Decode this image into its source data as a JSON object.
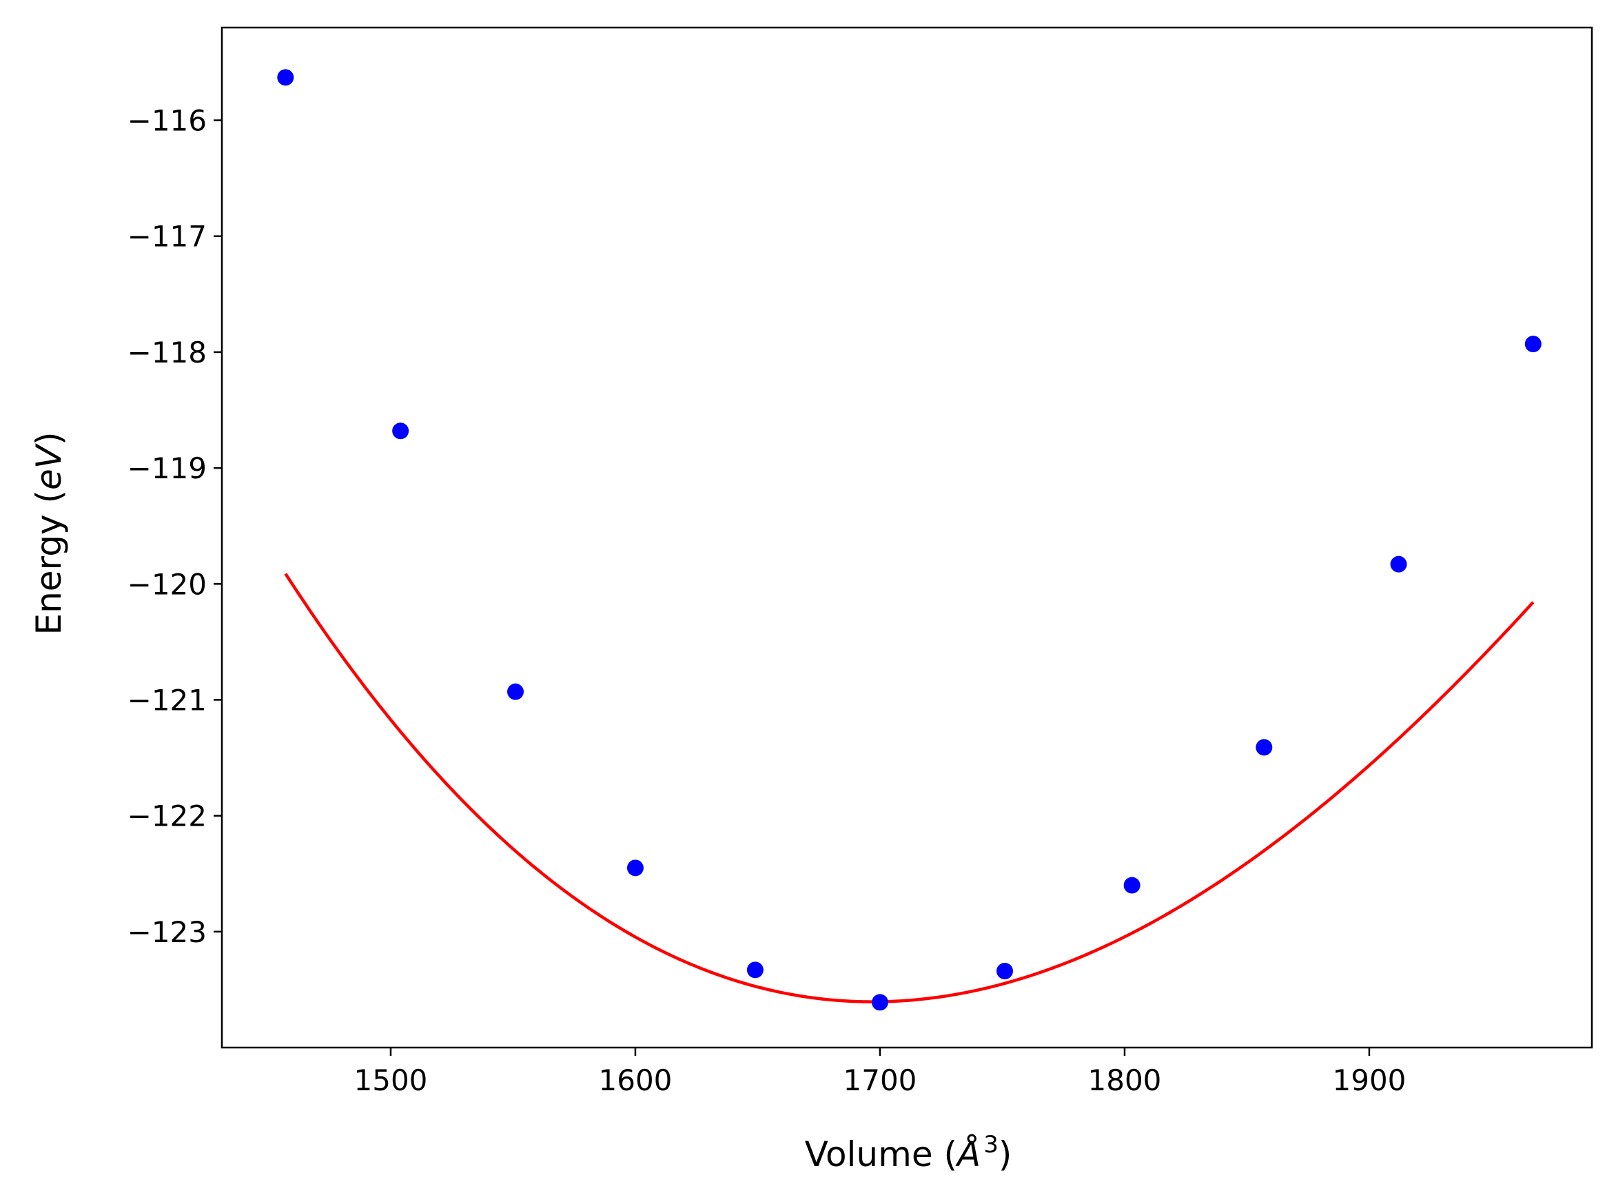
{
  "chart_data": {
    "type": "scatter",
    "title": "",
    "xlabel": {
      "prefix": "Volume (",
      "italic": "Å",
      "sup": "3",
      "suffix": ")"
    },
    "ylabel": {
      "prefix": "Energy (",
      "italic": "eV",
      "suffix": ")"
    },
    "xlim": [
      1431,
      1991
    ],
    "ylim": [
      -124.0,
      -115.2
    ],
    "xticks": [
      1500,
      1600,
      1700,
      1800,
      1900
    ],
    "xtick_labels": [
      "1500",
      "1600",
      "1700",
      "1800",
      "1900"
    ],
    "yticks": [
      -123,
      -122,
      -121,
      -120,
      -119,
      -118,
      -117,
      -116
    ],
    "ytick_labels": [
      "−123",
      "−122",
      "−121",
      "−120",
      "−119",
      "−118",
      "−117",
      "−116"
    ],
    "grid": false,
    "series": [
      {
        "kind": "points",
        "color": "#0000ff",
        "x": [
          1457,
          1504,
          1551,
          1600,
          1649,
          1700,
          1751,
          1803,
          1857,
          1912,
          1967
        ],
        "y": [
          -115.63,
          -118.68,
          -120.93,
          -122.45,
          -123.33,
          -123.61,
          -123.34,
          -122.6,
          -121.41,
          -119.83,
          -117.93
        ]
      },
      {
        "kind": "fit-line",
        "color": "#ff0000",
        "x_range": [
          1457,
          1967
        ],
        "v0": 1697,
        "e0": -123.605,
        "a": 5.62e-05,
        "b": -3.3e-08
      }
    ]
  }
}
